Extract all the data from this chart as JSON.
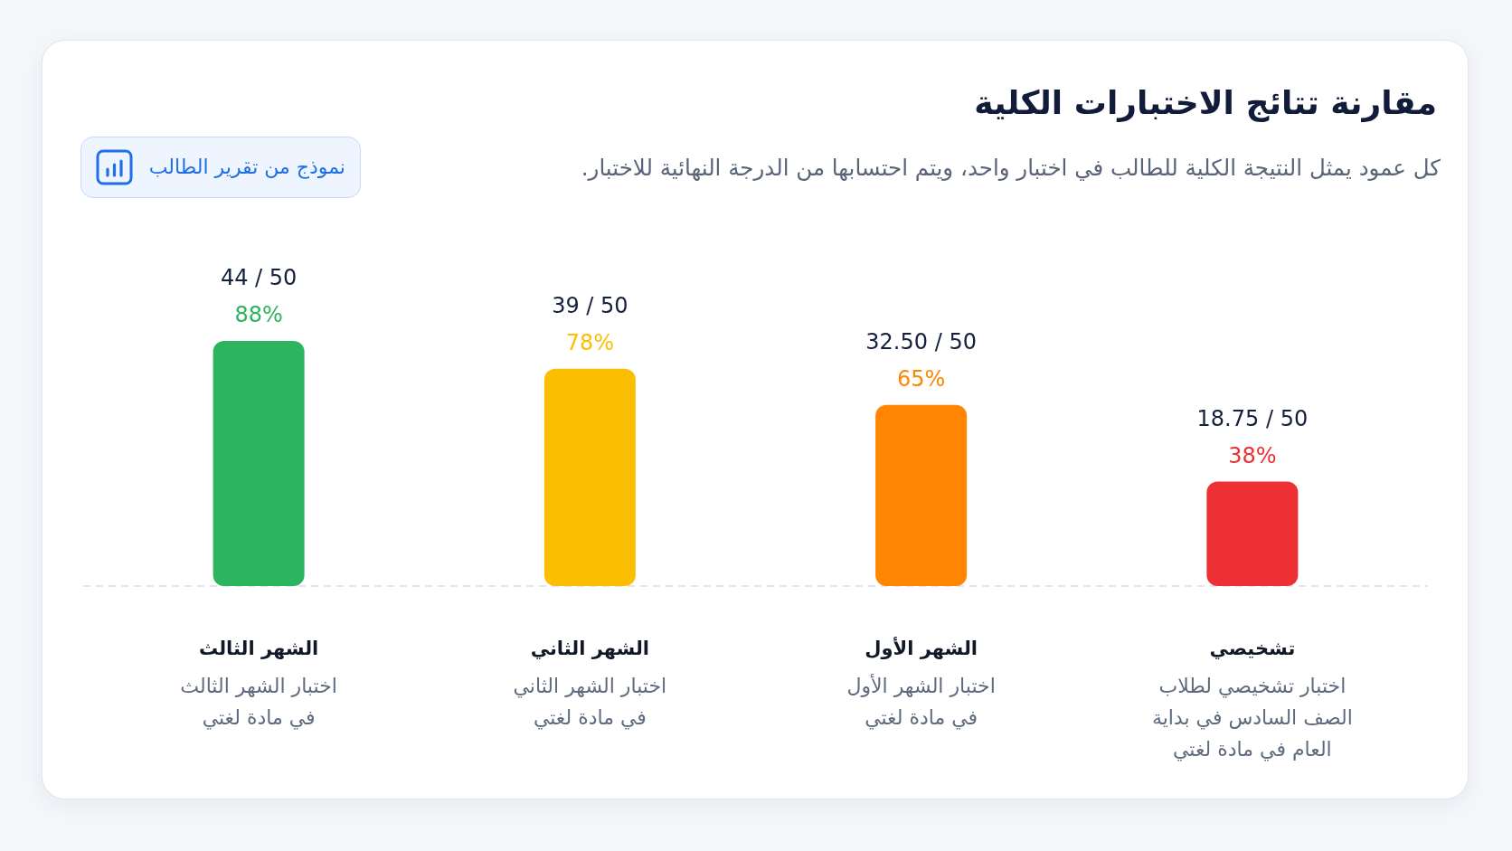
{
  "chart_data": {
    "type": "bar",
    "title": "مقارنة تتائج الاختبارات الكلية",
    "subtitle": "كل عمود يمثل النتيجة الكلية للطالب في اختبار واحد، ويتم احتسابها من الدرجة النهائية للاختبار.",
    "categories": [
      "الشهر الثالث",
      "الشهر الثاني",
      "الشهر الأول",
      "تشخيصي"
    ],
    "values": [
      44,
      39,
      32.5,
      18.75
    ],
    "value_labels": [
      "44 / 50",
      "39 / 50",
      "32.50 / 50",
      "18.75 / 50"
    ],
    "colors": [
      "#2db45f",
      "#fcbe03",
      "#ff8502",
      "#ec3034"
    ],
    "ref_lines": [
      {
        "axis": "y",
        "value": 0,
        "line_style": "dashed",
        "color": "#d6dbe6"
      }
    ],
    "annotations": [
      "نموذج من تقرير الطالب",
      {
        "text": "88%",
        "x": "الشهر الثالث",
        "y": 44
      },
      {
        "text": "78%",
        "x": "الشهر الثاني",
        "y": 39
      },
      {
        "text": "65%",
        "x": "الشهر الأول",
        "y": 32.5
      },
      {
        "text": "38%",
        "x": "تشخيصي",
        "y": 18.75
      },
      "اختبار الشهر الثالث في مادة لغتي",
      "اختبار الشهر الثاني في مادة لغتي",
      "اختبار الشهر الأول في مادة لغتي",
      "اختبار تشخيصي لطلاب الصف السادس في بداية العام في مادة لغتي"
    ]
  }
}
